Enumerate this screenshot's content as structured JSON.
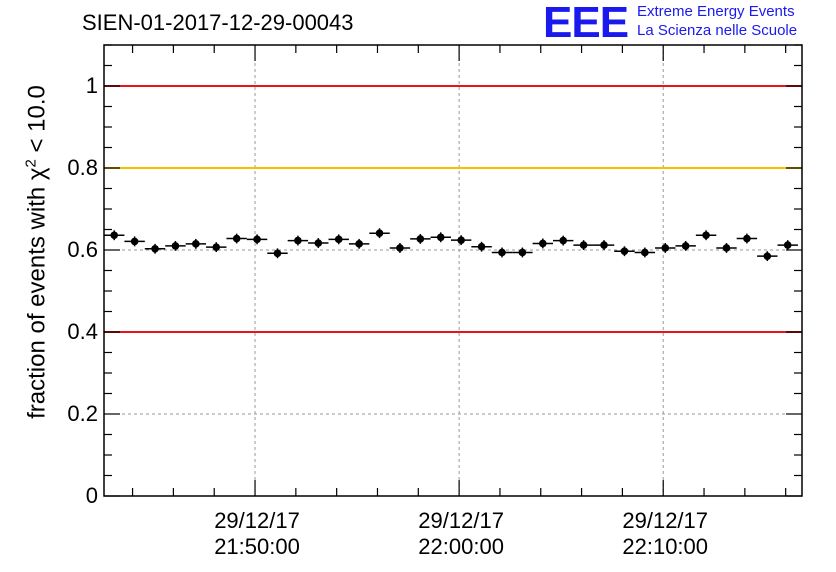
{
  "header": {
    "title": "SIEN-01-2017-12-29-00043",
    "logo_mark": "EEE",
    "logo_line1": "Extreme Energy Events",
    "logo_line2": "La Scienza nelle Scuole"
  },
  "colors": {
    "red": "#e8141b",
    "yellow": "#f2c200",
    "grid": "#9a9a9a",
    "logo": "#1a1aee"
  },
  "chart_data": {
    "type": "scatter",
    "title": "SIEN-01-2017-12-29-00043",
    "xlabel": "",
    "ylabel": "fraction of events with χ² < 10.0",
    "ylabel_base": "fraction of events with χ",
    "ylabel_sup": "2",
    "ylabel_tail": " < 10.0",
    "ylim": [
      0,
      1.1
    ],
    "yticks": [
      0,
      0.2,
      0.4,
      0.6,
      0.8,
      1
    ],
    "ytick_labels": [
      "0",
      "0.2",
      "0.4",
      "0.6",
      "0.8",
      "1"
    ],
    "xlim_minutes": [
      -7.4,
      26.8
    ],
    "xticks": [
      {
        "minutes": 0,
        "date": "29/12/17",
        "time": "21:50:00"
      },
      {
        "minutes": 10,
        "date": "29/12/17",
        "time": "22:00:00"
      },
      {
        "minutes": 20,
        "date": "29/12/17",
        "time": "22:10:00"
      }
    ],
    "bin_width_minutes": 1,
    "x_minutes": [
      -6.9,
      -5.9,
      -4.9,
      -3.9,
      -2.9,
      -1.9,
      -0.9,
      0.1,
      1.1,
      2.1,
      3.1,
      4.1,
      5.1,
      6.1,
      7.1,
      8.1,
      9.1,
      10.1,
      11.1,
      12.1,
      13.1,
      14.1,
      15.1,
      16.1,
      17.1,
      18.1,
      19.1,
      20.1,
      21.1,
      22.1,
      23.1,
      24.1,
      25.1,
      26.1
    ],
    "values": [
      0.636,
      0.621,
      0.603,
      0.61,
      0.615,
      0.607,
      0.628,
      0.626,
      0.592,
      0.623,
      0.617,
      0.626,
      0.615,
      0.641,
      0.605,
      0.627,
      0.631,
      0.624,
      0.608,
      0.594,
      0.594,
      0.616,
      0.623,
      0.612,
      0.612,
      0.597,
      0.594,
      0.605,
      0.61,
      0.636,
      0.605,
      0.628,
      0.585,
      0.612
    ],
    "yerr": 0.012,
    "reference_lines": [
      {
        "value": 1,
        "color": "red"
      },
      {
        "value": 0.8,
        "color": "yellow"
      },
      {
        "value": 0.4,
        "color": "red"
      }
    ],
    "grid": true
  }
}
